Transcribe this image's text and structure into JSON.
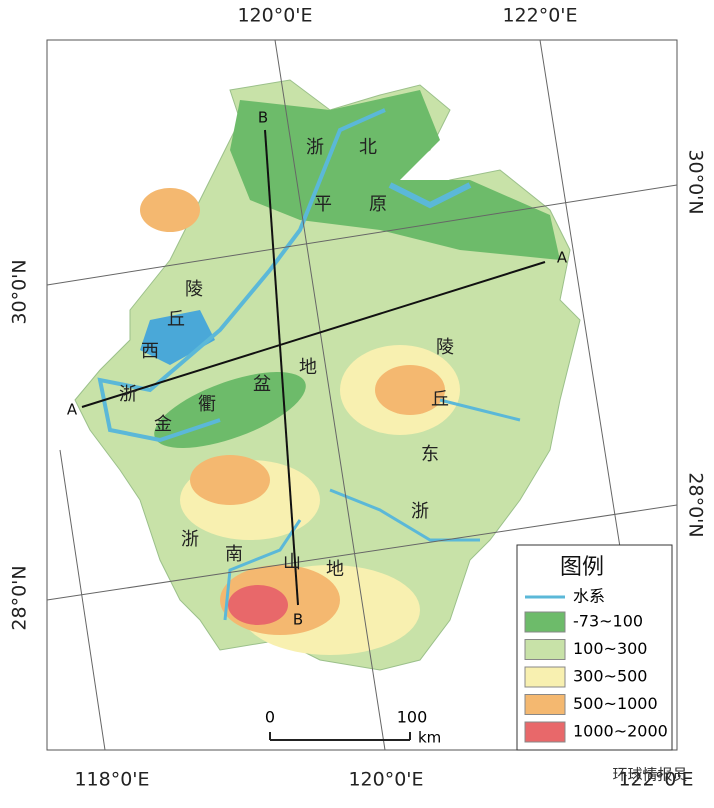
{
  "graticule": {
    "top": [
      "120°0'E",
      "122°0'E"
    ],
    "bottom": [
      "118°0'E",
      "120°0'E",
      "122°0'E"
    ],
    "left": [
      "30°0'N",
      "28°0'N"
    ],
    "right": [
      "30°0'N",
      "28°0'N"
    ]
  },
  "regions": [
    {
      "chars": [
        "浙",
        "北",
        "平",
        "原"
      ]
    },
    {
      "chars": [
        "浙",
        "西",
        "丘",
        "陵"
      ]
    },
    {
      "chars": [
        "金",
        "衢",
        "盆",
        "地"
      ]
    },
    {
      "chars": [
        "陵",
        "丘",
        "东",
        "浙"
      ]
    },
    {
      "chars": [
        "浙",
        "南",
        "山",
        "地"
      ]
    }
  ],
  "profiles": {
    "a_start": "A",
    "a_end": "A",
    "b_start": "B",
    "b_end": "B"
  },
  "legend": {
    "title": "图例",
    "water": {
      "label": "水系",
      "color": "#5bb8d8"
    },
    "items": [
      {
        "label": "-73~100",
        "color": "#6dbb6a"
      },
      {
        "label": "100~300",
        "color": "#c8e2a8"
      },
      {
        "label": "300~500",
        "color": "#f8f0b0"
      },
      {
        "label": "500~1000",
        "color": "#f4b870"
      },
      {
        "label": "1000~2000",
        "color": "#e8686a"
      }
    ]
  },
  "scale": {
    "start": "0",
    "end": "100",
    "unit": "km"
  },
  "watermark": "环球情报员"
}
